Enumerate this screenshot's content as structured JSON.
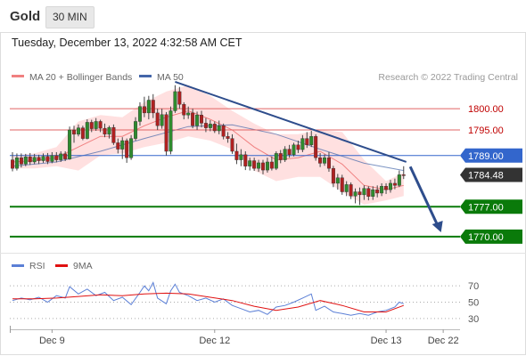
{
  "header": {
    "instrument": "Gold",
    "timeframe": "30 MIN"
  },
  "timestamp": "Tuesday, December 13, 2022 4:32:58 AM CET",
  "colors": {
    "support": "#0a7a0a",
    "resistance": "#e06464",
    "pivot": "#3366cc",
    "trend": "#2e4d8c",
    "bull": "#2e8b2e",
    "bear": "#b02020",
    "rsi": "#5b7fd6",
    "rsi_ma": "#e01010",
    "bands": "#ffd6d6",
    "ma20": "#f08080",
    "ma50": "#4466aa"
  },
  "chart_data": [
    {
      "type": "candlestick",
      "legend": {
        "ma20": "MA 20 + Bollinger Bands",
        "ma50": "MA 50"
      },
      "credit": "Research © 2022 Trading Central",
      "ylim": [
        1766,
        1814
      ],
      "xlim": [
        0,
        100
      ],
      "x_ticks": [
        {
          "x": 9,
          "label": "Dec 9"
        },
        {
          "x": 46,
          "label": "Dec 12"
        },
        {
          "x": 85,
          "label": "Dec 13"
        },
        {
          "x": 98,
          "label": "Dec 22"
        }
      ],
      "levels": [
        {
          "value": 1800.0,
          "label": "1800.00",
          "kind": "resistance"
        },
        {
          "value": 1795.0,
          "label": "1795.00",
          "kind": "resistance"
        },
        {
          "value": 1789.0,
          "label": "1789.00",
          "kind": "pivot"
        },
        {
          "value": 1777.0,
          "label": "1777.00",
          "kind": "support"
        },
        {
          "value": 1770.0,
          "label": "1770.00",
          "kind": "support"
        }
      ],
      "last_price": {
        "value": 1784.48,
        "label": "1784.48"
      },
      "trendline": {
        "x": [
          37,
          89.6
        ],
        "y": [
          1806.3,
          1787.5
        ]
      },
      "forecast": {
        "x": [
          90.5,
          97.5
        ],
        "y": [
          1786.4,
          1771
        ]
      },
      "candles": [
        [
          0,
          1788,
          1786,
          1789.8,
          1785.3
        ],
        [
          1,
          1786,
          1788.5,
          1789.5,
          1785.5
        ],
        [
          2,
          1788.5,
          1787,
          1789.5,
          1786.2
        ],
        [
          3,
          1787,
          1788.7,
          1789.4,
          1786.5
        ],
        [
          4,
          1788.7,
          1787.5,
          1789.6,
          1786.8
        ],
        [
          5,
          1787.5,
          1788.6,
          1789.4,
          1787
        ],
        [
          6,
          1788.6,
          1787.8,
          1789.2,
          1787
        ],
        [
          7,
          1787.8,
          1788.8,
          1789.5,
          1787.3
        ],
        [
          8,
          1788.8,
          1787.6,
          1789.6,
          1787
        ],
        [
          9,
          1787.6,
          1789,
          1789.8,
          1787.2
        ],
        [
          10,
          1789,
          1788,
          1789.8,
          1787.4
        ],
        [
          11,
          1788,
          1789.4,
          1790,
          1787.5
        ],
        [
          12,
          1789.4,
          1788.2,
          1790,
          1787.7
        ],
        [
          13,
          1788.2,
          1795,
          1795.8,
          1788
        ],
        [
          14,
          1795,
          1794,
          1796,
          1792
        ],
        [
          15,
          1794,
          1795.5,
          1796.3,
          1793.5
        ],
        [
          16,
          1795.5,
          1793,
          1796,
          1792.6
        ],
        [
          17,
          1793,
          1796.8,
          1797.5,
          1792.8
        ],
        [
          18,
          1796.8,
          1795.3,
          1797.4,
          1794.5
        ],
        [
          19,
          1795.3,
          1797,
          1797.8,
          1794.8
        ],
        [
          20,
          1797,
          1795.4,
          1797.4,
          1794.5
        ],
        [
          21,
          1795.4,
          1794,
          1796.5,
          1793.3
        ],
        [
          22,
          1794,
          1795.6,
          1796,
          1793
        ],
        [
          23,
          1795.6,
          1792,
          1796.3,
          1791.5
        ],
        [
          24,
          1792,
          1790.5,
          1793,
          1789.5
        ],
        [
          25,
          1790.5,
          1792.5,
          1793.3,
          1788.2
        ],
        [
          26,
          1792.5,
          1788.5,
          1793,
          1787.3
        ],
        [
          27,
          1788.5,
          1793,
          1793.8,
          1788
        ],
        [
          28,
          1793,
          1797,
          1798,
          1792.5
        ],
        [
          29,
          1797,
          1800.5,
          1801.5,
          1796
        ],
        [
          30,
          1800.5,
          1799,
          1802.8,
          1798
        ],
        [
          31,
          1799,
          1802,
          1803,
          1797.5
        ],
        [
          32,
          1802,
          1799,
          1803.4,
          1797.8
        ],
        [
          33,
          1799,
          1796,
          1800,
          1795
        ],
        [
          34,
          1796,
          1798.6,
          1800,
          1795.3
        ],
        [
          35,
          1798.6,
          1790,
          1799.2,
          1789
        ],
        [
          36,
          1790,
          1799.5,
          1800.5,
          1789.3
        ],
        [
          37,
          1799.5,
          1804,
          1805.5,
          1799
        ],
        [
          38,
          1804,
          1801,
          1805.1,
          1800
        ],
        [
          39,
          1801,
          1798.5,
          1801.5,
          1797.5
        ],
        [
          40,
          1798.5,
          1799,
          1800.5,
          1797.6
        ],
        [
          41,
          1799,
          1796,
          1800,
          1795.4
        ],
        [
          42,
          1796,
          1798.5,
          1799.3,
          1795
        ],
        [
          43,
          1798.5,
          1796.6,
          1799.5,
          1795.6
        ],
        [
          44,
          1796.6,
          1795.5,
          1797.8,
          1794.5
        ],
        [
          45,
          1795.5,
          1796.4,
          1797.3,
          1794.7
        ],
        [
          46,
          1796.4,
          1794.8,
          1797,
          1794.3
        ],
        [
          47,
          1794.8,
          1796,
          1797.2,
          1794
        ],
        [
          48,
          1796,
          1793.5,
          1796.5,
          1792.8
        ],
        [
          49,
          1793.5,
          1793,
          1794.5,
          1792
        ],
        [
          50,
          1793,
          1790,
          1794,
          1789.4
        ],
        [
          51,
          1790,
          1788,
          1791.8,
          1787
        ],
        [
          52,
          1788,
          1789.2,
          1790.5,
          1786.5
        ],
        [
          53,
          1789.2,
          1786.5,
          1790,
          1785.6
        ],
        [
          54,
          1786.5,
          1787.8,
          1788.5,
          1785.5
        ],
        [
          55,
          1787.8,
          1786,
          1788.5,
          1785.4
        ],
        [
          56,
          1786,
          1787.3,
          1788,
          1785.2
        ],
        [
          57,
          1787.3,
          1785.6,
          1788,
          1784.6
        ],
        [
          58,
          1785.6,
          1787.5,
          1788.5,
          1785
        ],
        [
          59,
          1787.5,
          1786,
          1788.8,
          1785.5
        ],
        [
          60,
          1786,
          1789.5,
          1790,
          1785.6
        ],
        [
          61,
          1789.5,
          1788,
          1790.3,
          1787.2
        ],
        [
          62,
          1788,
          1790.5,
          1791.2,
          1787.5
        ],
        [
          63,
          1790.5,
          1789.2,
          1791.5,
          1788.5
        ],
        [
          64,
          1789.2,
          1791.5,
          1792,
          1788.8
        ],
        [
          65,
          1791.5,
          1790.4,
          1792.5,
          1789.6
        ],
        [
          66,
          1790.4,
          1793,
          1793.8,
          1789.8
        ],
        [
          67,
          1793,
          1791.5,
          1794.5,
          1790.8
        ],
        [
          68,
          1791.5,
          1793.5,
          1794.8,
          1791
        ],
        [
          69,
          1793.5,
          1788.5,
          1794,
          1787.8
        ],
        [
          70,
          1788.5,
          1787.2,
          1789.6,
          1786.3
        ],
        [
          71,
          1787.2,
          1788.5,
          1789.3,
          1786.6
        ],
        [
          72,
          1788.5,
          1786,
          1789.8,
          1785.2
        ],
        [
          73,
          1786,
          1782.5,
          1786.6,
          1781.6
        ],
        [
          74,
          1782.5,
          1783.8,
          1784.7,
          1781
        ],
        [
          75,
          1783.8,
          1780.5,
          1784.5,
          1779.8
        ],
        [
          76,
          1780.5,
          1782.2,
          1783,
          1779.5
        ],
        [
          77,
          1782.2,
          1779.5,
          1782.7,
          1778.8
        ],
        [
          78,
          1779.5,
          1780.5,
          1781.3,
          1777.8
        ],
        [
          79,
          1780.5,
          1779.8,
          1781.5,
          1777.4
        ],
        [
          80,
          1779.8,
          1781.3,
          1782,
          1778.6
        ],
        [
          81,
          1781.3,
          1779.4,
          1781.8,
          1778.5
        ],
        [
          82,
          1779.4,
          1781,
          1781.8,
          1778.6
        ],
        [
          83,
          1781,
          1780.2,
          1782,
          1779.2
        ],
        [
          84,
          1780.2,
          1781.8,
          1782.5,
          1779.5
        ],
        [
          85,
          1781.8,
          1781,
          1782.5,
          1780
        ],
        [
          86,
          1781,
          1782.5,
          1783.3,
          1780.3
        ],
        [
          87,
          1782.5,
          1782,
          1783.6,
          1781.1
        ],
        [
          88,
          1782,
          1784.5,
          1785.5,
          1781.6
        ],
        [
          89,
          1784.5,
          1784.48,
          1786.5,
          1783.5
        ]
      ],
      "bollinger": {
        "x": [
          0,
          5,
          10,
          15,
          20,
          25,
          30,
          35,
          40,
          45,
          50,
          55,
          60,
          65,
          70,
          75,
          80,
          85,
          89
        ],
        "mid": [
          1787.5,
          1787.8,
          1788.5,
          1791,
          1793.5,
          1793.5,
          1796,
          1798,
          1799.5,
          1797.5,
          1795,
          1791,
          1788,
          1788.5,
          1790,
          1787,
          1782,
          1781,
          1782
        ],
        "upper": [
          1789,
          1789.5,
          1791,
          1797,
          1798.5,
          1798,
          1801.5,
          1804,
          1805.5,
          1803,
          1799.5,
          1796.5,
          1794,
          1794,
          1795,
          1794.5,
          1788,
          1783,
          1785
        ],
        "lower": [
          1786,
          1786,
          1786.5,
          1785.5,
          1789,
          1789.5,
          1791,
          1792,
          1793.5,
          1792.5,
          1790.5,
          1785.5,
          1783,
          1784,
          1784,
          1780.5,
          1777.5,
          1778.5,
          1779.5
        ]
      },
      "ma50": {
        "x": [
          0,
          10,
          20,
          30,
          40,
          50,
          60,
          70,
          80,
          89
        ],
        "y": [
          1786.5,
          1787.5,
          1790,
          1793,
          1795.8,
          1796.2,
          1794,
          1790.5,
          1787.2,
          1785.5
        ]
      }
    },
    {
      "type": "line",
      "legend": {
        "rsi": "RSI",
        "ma": "9MA"
      },
      "ylim": [
        20,
        80
      ],
      "y_ticks": [
        {
          "value": 70,
          "label": "70"
        },
        {
          "value": 50,
          "label": "50"
        },
        {
          "value": 30,
          "label": "30"
        }
      ],
      "series": [
        {
          "name": "RSI",
          "x": [
            0,
            2,
            4,
            6,
            8,
            10,
            12,
            13,
            15,
            17,
            19,
            21,
            23,
            25,
            27,
            29,
            30,
            31,
            32,
            33,
            35,
            36,
            37,
            38,
            40,
            42,
            44,
            46,
            48,
            50,
            52,
            54,
            56,
            58,
            60,
            62,
            64,
            66,
            68,
            69,
            71,
            73,
            75,
            77,
            79,
            81,
            83,
            85,
            87,
            88,
            89
          ],
          "y": [
            52,
            55,
            53,
            56,
            50,
            58,
            55,
            69,
            60,
            66,
            58,
            62,
            52,
            56,
            47,
            62,
            70,
            64,
            74,
            55,
            48,
            64,
            72,
            62,
            58,
            52,
            55,
            50,
            54,
            46,
            42,
            38,
            40,
            35,
            44,
            46,
            50,
            55,
            60,
            40,
            45,
            38,
            36,
            34,
            36,
            34,
            38,
            40,
            44,
            50,
            48
          ]
        },
        {
          "name": "9MA",
          "x": [
            0,
            5,
            10,
            15,
            20,
            25,
            30,
            35,
            40,
            45,
            50,
            55,
            60,
            65,
            70,
            75,
            80,
            85,
            89
          ],
          "y": [
            54,
            54,
            55,
            57,
            59,
            58,
            60,
            61,
            60,
            56,
            52,
            45,
            40,
            44,
            52,
            46,
            38,
            38,
            46
          ]
        }
      ]
    }
  ]
}
